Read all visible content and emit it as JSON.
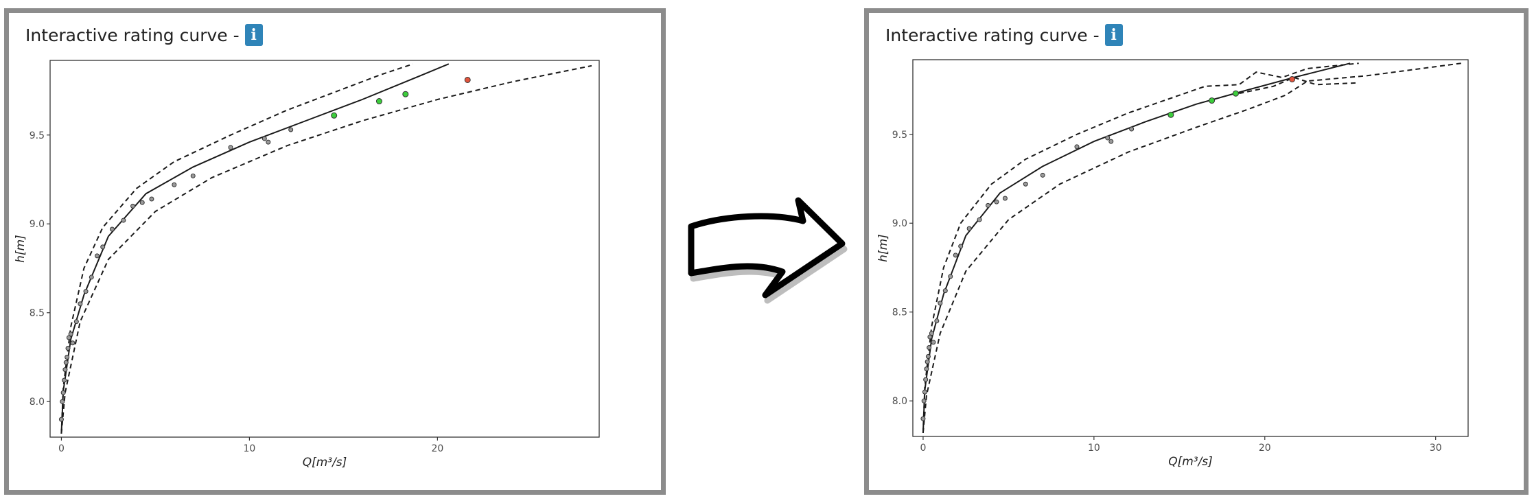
{
  "panels": [
    {
      "title": "Interactive rating curve -",
      "info_glyph": "i",
      "info_icon": "info-icon"
    },
    {
      "title": "Interactive rating curve -",
      "info_glyph": "i",
      "info_icon": "info-icon"
    }
  ],
  "arrow_icon": "curved-arrow-right-icon",
  "colors": {
    "frame": "#8c8c8c",
    "info_button": "#2f84b8",
    "green_point": "#3ccd3c",
    "red_point": "#e2543c"
  },
  "chart_data": [
    {
      "type": "line",
      "xlabel": "Q[m³/s]",
      "ylabel": "h[m]",
      "xlim": [
        -0.6,
        28.6
      ],
      "ylim": [
        7.8,
        9.92
      ],
      "xticks": [
        0,
        10,
        20
      ],
      "yticks": [
        8.0,
        8.5,
        9.0,
        9.5
      ],
      "ytick_labels": [
        "8.0",
        "8.5",
        "9.0",
        "9.5"
      ],
      "grid": false,
      "legend": "none",
      "series": [
        {
          "style": "solid",
          "x": [
            0,
            0.1,
            0.5,
            1.2,
            2.5,
            4.5,
            7,
            10,
            13,
            16,
            19,
            20.6
          ],
          "y": [
            7.82,
            8.06,
            8.35,
            8.6,
            8.93,
            9.17,
            9.32,
            9.46,
            9.58,
            9.7,
            9.83,
            9.9
          ]
        },
        {
          "style": "dashed",
          "x": [
            0,
            0.1,
            0.5,
            1.2,
            2.2,
            4,
            6,
            9,
            12,
            15,
            17,
            18.7
          ],
          "y": [
            7.82,
            8.08,
            8.42,
            8.75,
            8.98,
            9.2,
            9.35,
            9.5,
            9.64,
            9.76,
            9.84,
            9.9
          ]
        },
        {
          "style": "dashed",
          "x": [
            0,
            0.2,
            1,
            2.5,
            5,
            8,
            12,
            16,
            20,
            24,
            28.2
          ],
          "y": [
            7.82,
            8.05,
            8.45,
            8.8,
            9.07,
            9.26,
            9.44,
            9.58,
            9.7,
            9.8,
            9.89
          ]
        }
      ],
      "points": {
        "x": [
          0,
          0.05,
          0.1,
          0.15,
          0.2,
          0.25,
          0.3,
          0.35,
          0.4,
          0.5,
          0.6,
          0.8,
          1.0,
          1.3,
          1.6,
          1.9,
          2.2,
          2.7,
          3.3,
          3.8,
          4.3,
          4.8,
          6,
          7,
          9,
          10.8,
          11,
          12.2
        ],
        "y": [
          7.9,
          8.0,
          8.05,
          8.12,
          8.18,
          8.22,
          8.25,
          8.3,
          8.36,
          8.38,
          8.33,
          8.45,
          8.55,
          8.62,
          8.7,
          8.82,
          8.87,
          8.97,
          9.02,
          9.1,
          9.12,
          9.14,
          9.22,
          9.27,
          9.43,
          9.48,
          9.46,
          9.53
        ]
      },
      "new_points": {
        "x": [
          14.5,
          16.9,
          18.3
        ],
        "y": [
          9.61,
          9.69,
          9.73
        ]
      },
      "flagged_point": {
        "x": [
          21.6
        ],
        "y": [
          9.81
        ]
      }
    },
    {
      "type": "line",
      "xlabel": "Q[m³/s]",
      "ylabel": "h[m]",
      "xlim": [
        -0.6,
        31.9
      ],
      "ylim": [
        7.8,
        9.92
      ],
      "xticks": [
        0,
        10,
        20,
        30
      ],
      "yticks": [
        8.0,
        8.5,
        9.0,
        9.5
      ],
      "ytick_labels": [
        "8.0",
        "8.5",
        "9.0",
        "9.5"
      ],
      "grid": false,
      "legend": "none",
      "series": [
        {
          "style": "solid",
          "x": [
            0,
            0.1,
            0.5,
            1.2,
            2.5,
            4.5,
            7,
            10,
            13,
            16,
            19,
            21.7,
            25
          ],
          "y": [
            7.82,
            8.06,
            8.35,
            8.6,
            8.93,
            9.17,
            9.32,
            9.46,
            9.57,
            9.67,
            9.75,
            9.82,
            9.9
          ]
        },
        {
          "style": "dashed",
          "x": [
            0,
            0.1,
            0.5,
            1.2,
            2.2,
            4,
            6,
            9,
            12,
            15,
            16.5,
            18.5,
            19.5,
            21,
            22.5,
            25.5
          ],
          "y": [
            7.82,
            8.08,
            8.42,
            8.75,
            9.0,
            9.22,
            9.36,
            9.5,
            9.62,
            9.72,
            9.77,
            9.78,
            9.85,
            9.82,
            9.87,
            9.9
          ]
        },
        {
          "style": "dashed",
          "x": [
            0,
            0.2,
            1,
            2.5,
            5,
            8,
            12,
            16,
            19,
            21.2,
            22.5,
            26,
            31.5
          ],
          "y": [
            7.82,
            8.03,
            8.38,
            8.73,
            9.02,
            9.22,
            9.4,
            9.54,
            9.64,
            9.72,
            9.8,
            9.83,
            9.9
          ]
        },
        {
          "style": "dashed",
          "x": [
            18.5,
            20.5,
            21.7,
            23,
            25.5
          ],
          "y": [
            9.73,
            9.77,
            9.82,
            9.78,
            9.79
          ]
        }
      ],
      "points": {
        "x": [
          0,
          0.05,
          0.1,
          0.15,
          0.2,
          0.25,
          0.3,
          0.35,
          0.4,
          0.5,
          0.6,
          0.8,
          1.0,
          1.3,
          1.6,
          1.9,
          2.2,
          2.7,
          3.3,
          3.8,
          4.3,
          4.8,
          6,
          7,
          9,
          10.8,
          11,
          12.2
        ],
        "y": [
          7.9,
          8.0,
          8.05,
          8.12,
          8.18,
          8.22,
          8.25,
          8.3,
          8.36,
          8.38,
          8.33,
          8.45,
          8.55,
          8.62,
          8.7,
          8.82,
          8.87,
          8.97,
          9.02,
          9.1,
          9.12,
          9.14,
          9.22,
          9.27,
          9.43,
          9.48,
          9.46,
          9.53
        ]
      },
      "new_points": {
        "x": [
          14.5,
          16.9,
          18.3
        ],
        "y": [
          9.61,
          9.69,
          9.73
        ]
      },
      "flagged_point": {
        "x": [
          21.6
        ],
        "y": [
          9.81
        ]
      }
    }
  ]
}
